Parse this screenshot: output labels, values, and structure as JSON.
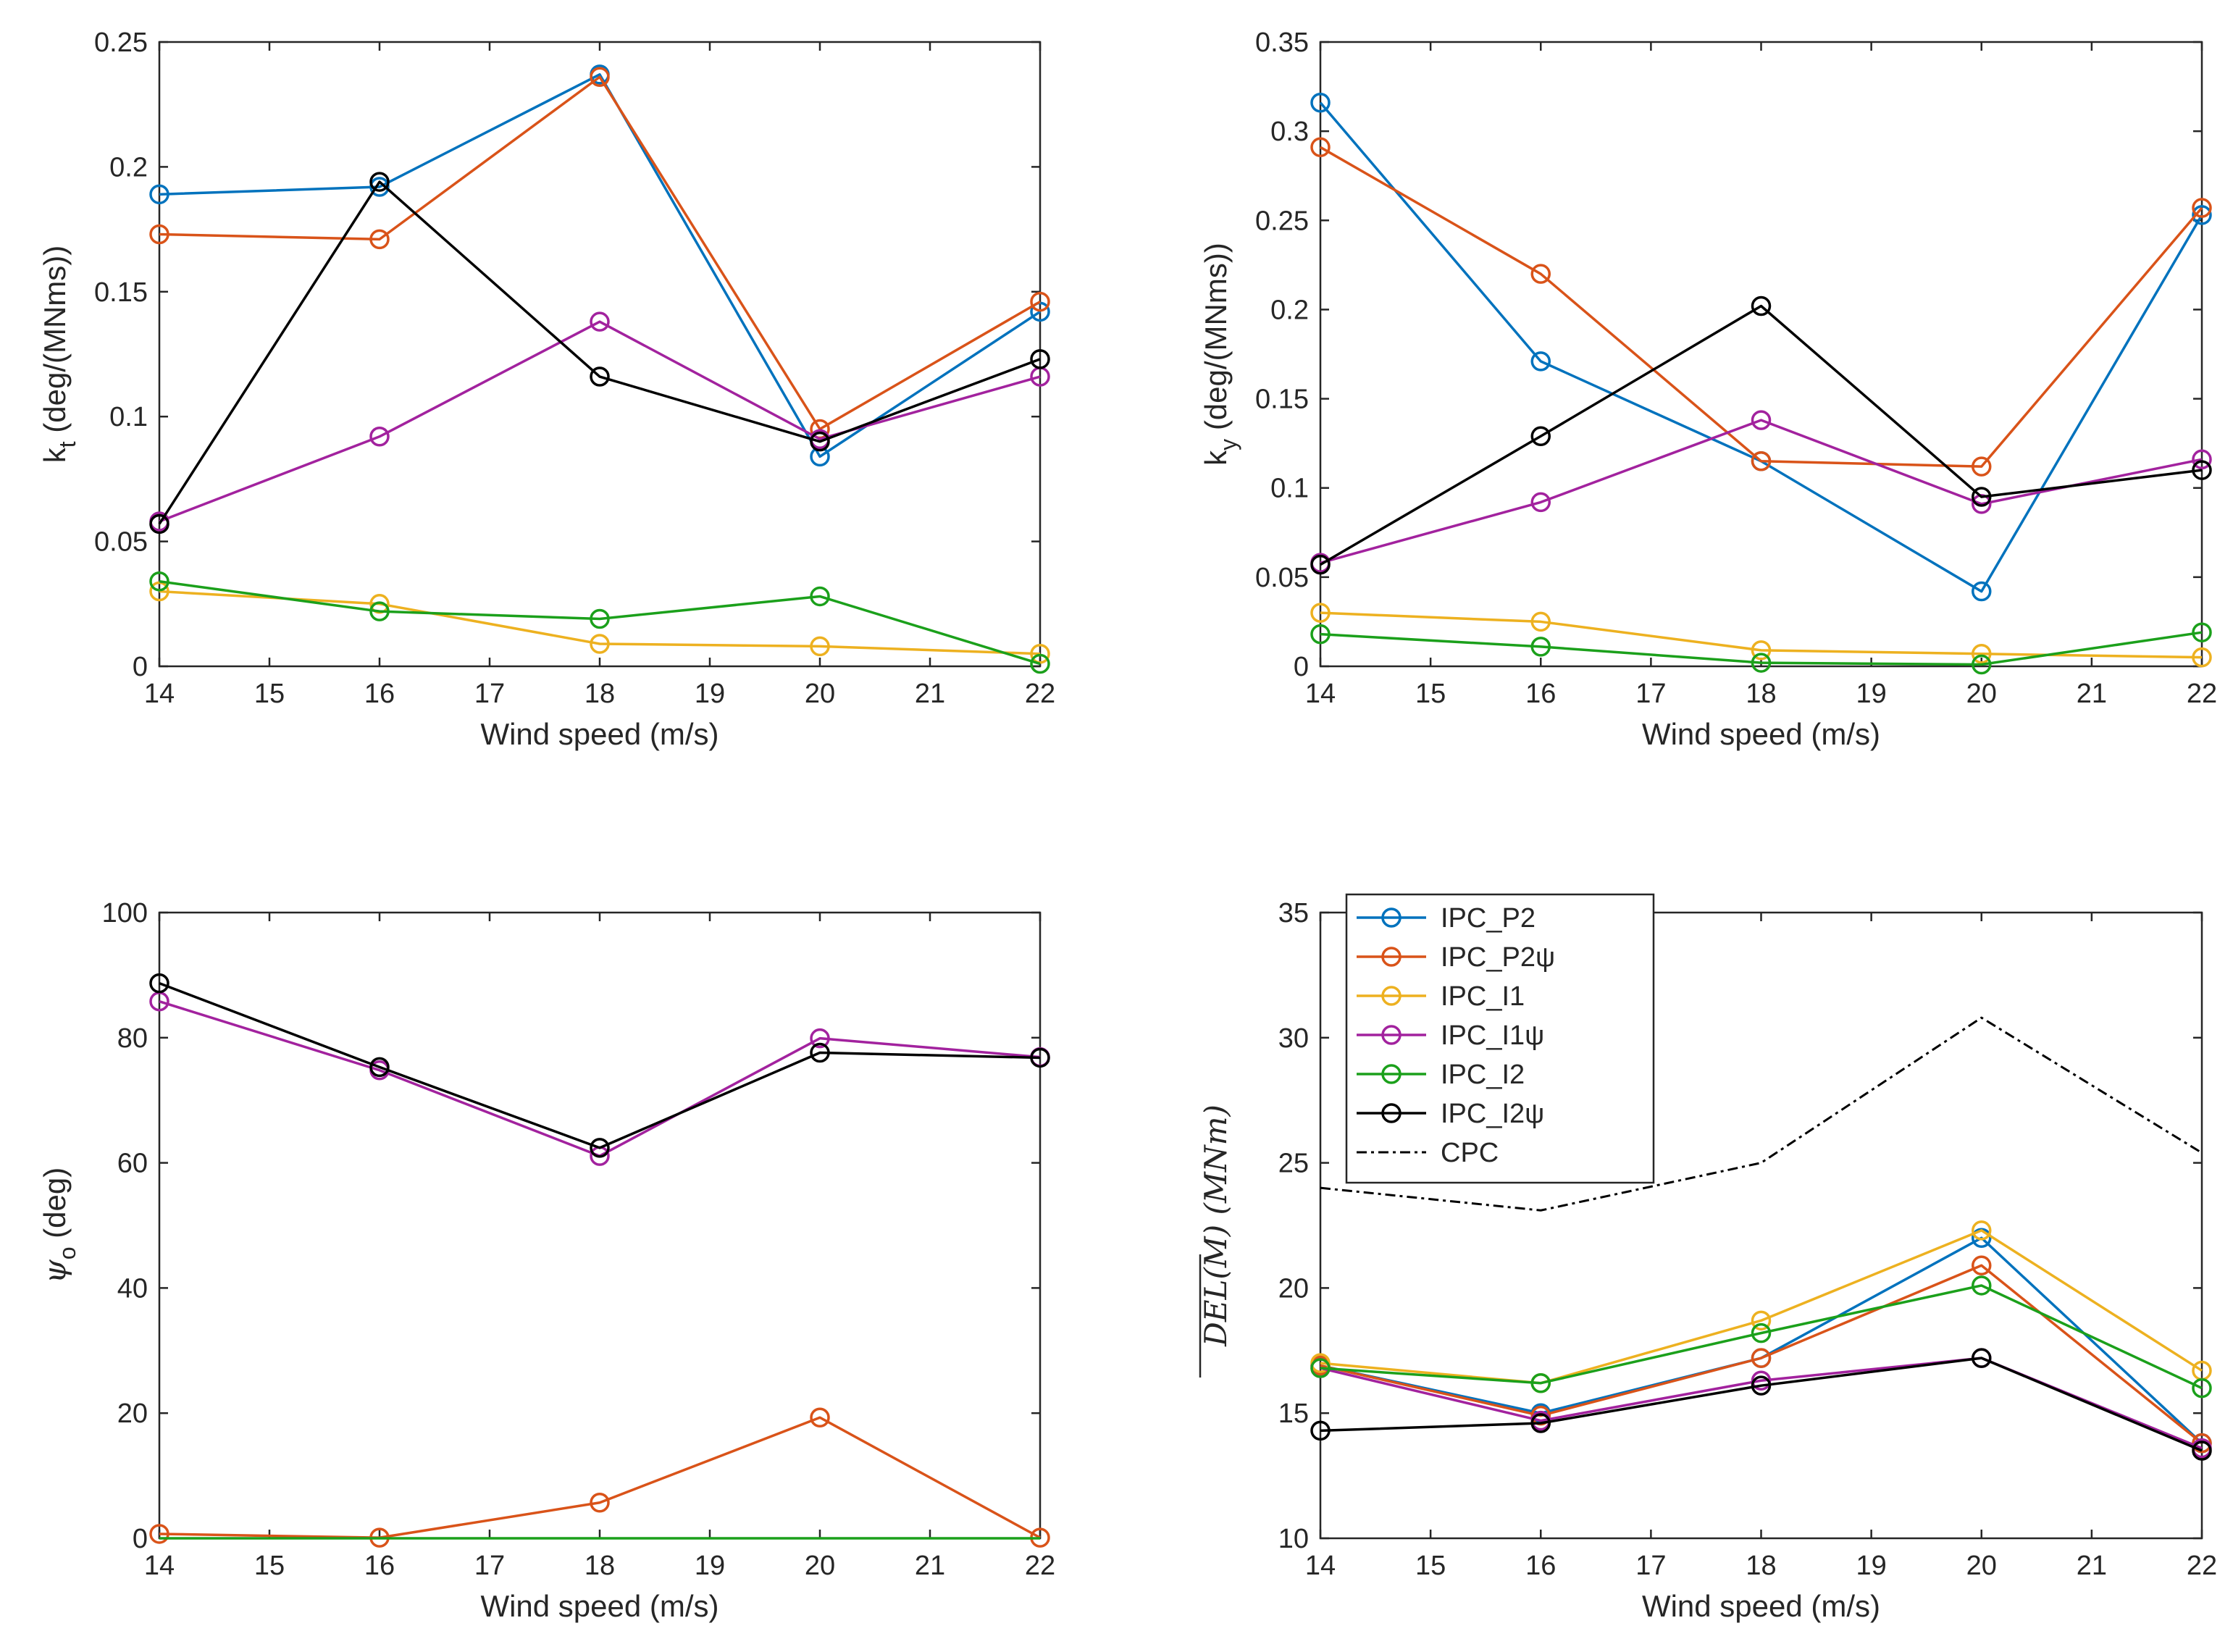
{
  "colors": {
    "IPC_P2": "#0072BD",
    "IPC_P2psi": "#D95319",
    "IPC_I1": "#EDB120",
    "IPC_I1psi": "#A2229E",
    "IPC_I2": "#1BA01B",
    "IPC_I2psi": "#000000",
    "CPC": "#000000"
  },
  "legend": {
    "entries": [
      {
        "key": "IPC_P2",
        "label": "IPC_P2",
        "marker": "circle",
        "dashed": false
      },
      {
        "key": "IPC_P2psi",
        "label": "IPC_P2ψ",
        "marker": "circle",
        "dashed": false
      },
      {
        "key": "IPC_I1",
        "label": "IPC_I1",
        "marker": "circle",
        "dashed": false
      },
      {
        "key": "IPC_I1psi",
        "label": "IPC_I1ψ",
        "marker": "circle",
        "dashed": false
      },
      {
        "key": "IPC_I2",
        "label": "IPC_I2",
        "marker": "circle",
        "dashed": false
      },
      {
        "key": "IPC_I2psi",
        "label": "IPC_I2ψ",
        "marker": "circle",
        "dashed": false
      },
      {
        "key": "CPC",
        "label": "CPC",
        "marker": "none",
        "dashed": true
      }
    ]
  },
  "chart_data": [
    {
      "id": "kt",
      "type": "line",
      "xlabel": "Wind speed (m/s)",
      "ylabel": "k",
      "ylabel_sub": "t",
      "ylabel_rest": " (deg/(MNms))",
      "xlim": [
        14,
        22
      ],
      "ylim": [
        0,
        0.25
      ],
      "xticks": [
        "14",
        "15",
        "16",
        "17",
        "18",
        "19",
        "20",
        "21",
        "22"
      ],
      "yticks": [
        "0",
        "0.05",
        "0.1",
        "0.15",
        "0.2",
        "0.25"
      ],
      "x": [
        14,
        16,
        18,
        20,
        22
      ],
      "series": [
        {
          "key": "IPC_P2",
          "values": [
            0.189,
            0.192,
            0.237,
            0.084,
            0.142
          ]
        },
        {
          "key": "IPC_P2psi",
          "values": [
            0.173,
            0.171,
            0.236,
            0.095,
            0.146
          ]
        },
        {
          "key": "IPC_I1",
          "values": [
            0.03,
            0.025,
            0.009,
            0.008,
            0.005
          ]
        },
        {
          "key": "IPC_I1psi",
          "values": [
            0.058,
            0.092,
            0.138,
            0.091,
            0.116
          ]
        },
        {
          "key": "IPC_I2",
          "values": [
            0.034,
            0.022,
            0.019,
            0.028,
            0.001
          ]
        },
        {
          "key": "IPC_I2psi",
          "values": [
            0.057,
            0.194,
            0.116,
            0.09,
            0.123
          ]
        }
      ]
    },
    {
      "id": "ky",
      "type": "line",
      "xlabel": "Wind speed (m/s)",
      "ylabel": "k",
      "ylabel_sub": "y",
      "ylabel_rest": " (deg/(MNms))",
      "xlim": [
        14,
        22
      ],
      "ylim": [
        0,
        0.35
      ],
      "xticks": [
        "14",
        "15",
        "16",
        "17",
        "18",
        "19",
        "20",
        "21",
        "22"
      ],
      "yticks": [
        "0",
        "0.05",
        "0.1",
        "0.15",
        "0.2",
        "0.25",
        "0.3",
        "0.35"
      ],
      "x": [
        14,
        16,
        18,
        20,
        22
      ],
      "series": [
        {
          "key": "IPC_P2",
          "values": [
            0.316,
            0.171,
            0.115,
            0.042,
            0.253
          ]
        },
        {
          "key": "IPC_P2psi",
          "values": [
            0.291,
            0.22,
            0.115,
            0.112,
            0.257
          ]
        },
        {
          "key": "IPC_I1",
          "values": [
            0.03,
            0.025,
            0.009,
            0.007,
            0.005
          ]
        },
        {
          "key": "IPC_I1psi",
          "values": [
            0.058,
            0.092,
            0.138,
            0.091,
            0.116
          ]
        },
        {
          "key": "IPC_I2",
          "values": [
            0.018,
            0.011,
            0.002,
            0.001,
            0.019
          ]
        },
        {
          "key": "IPC_I2psi",
          "values": [
            0.057,
            0.129,
            0.202,
            0.095,
            0.11
          ]
        }
      ]
    },
    {
      "id": "psi",
      "type": "line",
      "xlabel": "Wind speed (m/s)",
      "ylabel": "ψ",
      "ylabel_sub": "o",
      "ylabel_rest": " (deg)",
      "xlim": [
        14,
        22
      ],
      "ylim": [
        0,
        100
      ],
      "xticks": [
        "14",
        "15",
        "16",
        "17",
        "18",
        "19",
        "20",
        "21",
        "22"
      ],
      "yticks": [
        "0",
        "20",
        "40",
        "60",
        "80",
        "100"
      ],
      "x": [
        14,
        16,
        18,
        20,
        22
      ],
      "series": [
        {
          "key": "IPC_P2psi",
          "values": [
            0.7,
            0.1,
            5.7,
            19.3,
            0.1
          ],
          "markers": true
        },
        {
          "key": "IPC_I2",
          "values": [
            0,
            0,
            0,
            0,
            0
          ],
          "markers": false
        },
        {
          "key": "IPC_I1psi",
          "values": [
            85.8,
            74.8,
            61.1,
            79.9,
            76.9
          ],
          "markers": true
        },
        {
          "key": "IPC_I2psi",
          "values": [
            88.7,
            75.3,
            62.4,
            77.6,
            76.8
          ],
          "markers": true
        }
      ]
    },
    {
      "id": "del",
      "type": "line",
      "xlabel": "Wind speed (m/s)",
      "ylabel": "DEL(M) (MNm)",
      "xlim": [
        14,
        22
      ],
      "ylim": [
        10,
        35
      ],
      "xticks": [
        "14",
        "15",
        "16",
        "17",
        "18",
        "19",
        "20",
        "21",
        "22"
      ],
      "yticks": [
        "10",
        "15",
        "20",
        "25",
        "30",
        "35"
      ],
      "x": [
        14,
        16,
        18,
        20,
        22
      ],
      "legend_position": "top-left",
      "series": [
        {
          "key": "CPC",
          "values": [
            24.0,
            23.1,
            25.0,
            30.8,
            25.4
          ],
          "markers": false,
          "dashed": true
        },
        {
          "key": "IPC_P2",
          "values": [
            16.9,
            15.0,
            17.2,
            22.0,
            13.8
          ]
        },
        {
          "key": "IPC_P2psi",
          "values": [
            16.9,
            14.9,
            17.2,
            20.9,
            13.8
          ]
        },
        {
          "key": "IPC_I1",
          "values": [
            17.0,
            16.2,
            18.7,
            22.3,
            16.7
          ]
        },
        {
          "key": "IPC_I1psi",
          "values": [
            16.8,
            14.7,
            16.3,
            17.2,
            13.6
          ]
        },
        {
          "key": "IPC_I2",
          "values": [
            16.8,
            16.2,
            18.2,
            20.1,
            16.0
          ]
        },
        {
          "key": "IPC_I2psi",
          "values": [
            14.3,
            14.6,
            16.1,
            17.2,
            13.5
          ]
        }
      ]
    }
  ]
}
